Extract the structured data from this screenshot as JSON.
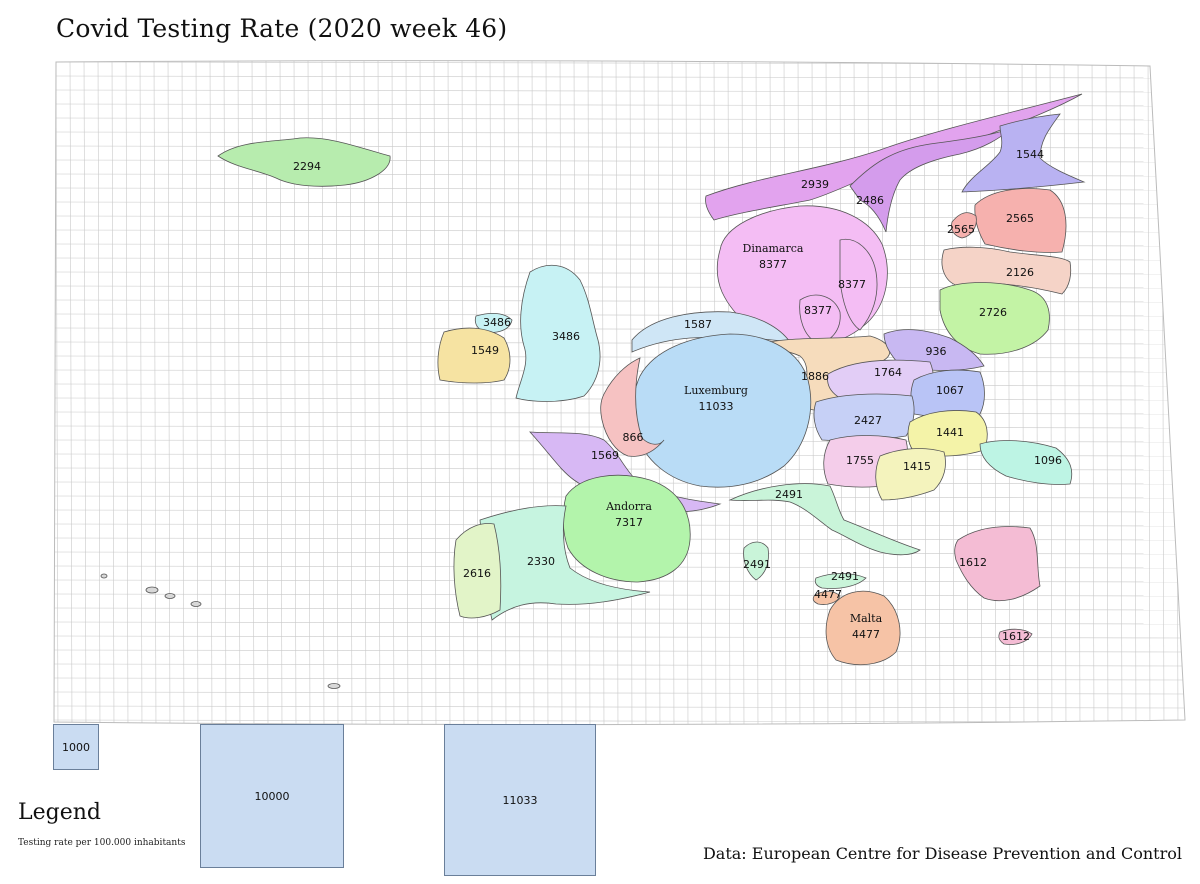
{
  "title": "Covid Testing Rate (2020 week 46)",
  "colors": {
    "grid_line": "#c9c9c9",
    "legend_box_fill": "#cadcf2",
    "legend_box_border": "#6a7f9a"
  },
  "regions": [
    {
      "id": "iceland",
      "value": "2294",
      "color": "#b7ecae"
    },
    {
      "id": "norway",
      "value": "2939",
      "color": "#e2a3ee"
    },
    {
      "id": "sweden",
      "value": "2486",
      "color": "#d49cec"
    },
    {
      "id": "finland",
      "value": "1544",
      "color": "#b9b2f2"
    },
    {
      "id": "estonia",
      "value": "2565",
      "color": "#f6b1ae"
    },
    {
      "id": "latvia",
      "value": "2126",
      "color": "#f5d3c7"
    },
    {
      "id": "lithuania",
      "value": "2726",
      "color": "#c3f3a5"
    },
    {
      "id": "denmark",
      "name": "Dinamarca",
      "value": "8377",
      "color": "#f4bdf4"
    },
    {
      "id": "uk",
      "value": "3486",
      "color": "#c7f2f4"
    },
    {
      "id": "ireland",
      "value": "1549",
      "color": "#f6e3a2"
    },
    {
      "id": "netherlands",
      "value": "1587",
      "color": "#cfe6f6"
    },
    {
      "id": "luxembourg",
      "name": "Luxemburg",
      "value": "11033",
      "color": "#b9dcf6"
    },
    {
      "id": "belgium",
      "value": "866",
      "color": "#f6c2c2"
    },
    {
      "id": "germany",
      "value": "1886",
      "color": "#f6dcbc"
    },
    {
      "id": "poland",
      "value": "936",
      "color": "#c8b8f2"
    },
    {
      "id": "czechia",
      "value": "1764",
      "color": "#e2cdf6"
    },
    {
      "id": "slovakia",
      "value": "1067",
      "color": "#b9c4f6"
    },
    {
      "id": "austria",
      "value": "2427",
      "color": "#c6d0f6"
    },
    {
      "id": "hungary",
      "value": "1441",
      "color": "#f4f3a8"
    },
    {
      "id": "slovenia_croatia",
      "value": "1755",
      "color": "#f4cdea"
    },
    {
      "id": "croatia",
      "value": "1415",
      "color": "#f4f3bd"
    },
    {
      "id": "romania",
      "value": "1096",
      "color": "#bdf4e4"
    },
    {
      "id": "france",
      "value": "1569",
      "color": "#d7b8f4"
    },
    {
      "id": "andorra",
      "name": "Andorra",
      "value": "7317",
      "color": "#b3f4ab"
    },
    {
      "id": "spain",
      "value": "2330",
      "color": "#c6f4e0"
    },
    {
      "id": "portugal",
      "value": "2616",
      "color": "#e2f4c8"
    },
    {
      "id": "italy",
      "value": "2491",
      "color": "#c9f4d9"
    },
    {
      "id": "sardinia",
      "value": "2491",
      "color": "#c9f4d9"
    },
    {
      "id": "sicily",
      "value": "2491",
      "color": "#c9f4d9"
    },
    {
      "id": "malta",
      "name": "Malta",
      "value": "4477",
      "color": "#f6c3a6"
    },
    {
      "id": "malta_small",
      "value": "4477",
      "color": "#f6c3a6"
    },
    {
      "id": "greece",
      "value": "1612",
      "color": "#f4bcd4"
    },
    {
      "id": "crete",
      "value": "1612",
      "color": "#f4bcd4"
    },
    {
      "id": "ni",
      "value": "3486",
      "color": "#c7f2f4"
    },
    {
      "id": "sweden_s",
      "value": "8377",
      "color": "#f4bdf4"
    },
    {
      "id": "sweden_s2",
      "value": "8377",
      "color": "#f4bdf4"
    },
    {
      "id": "estonia_island",
      "value": "2565",
      "color": "#f6b1ae"
    }
  ],
  "legend": {
    "title": "Legend",
    "caption": "Testing rate per 100.000 inhabitants",
    "boxes": [
      {
        "label": "1000",
        "value": 1000
      },
      {
        "label": "10000",
        "value": 10000
      },
      {
        "label": "11033",
        "value": 11033
      }
    ]
  },
  "credit": "Data: European Centre for Disease Prevention and Control"
}
